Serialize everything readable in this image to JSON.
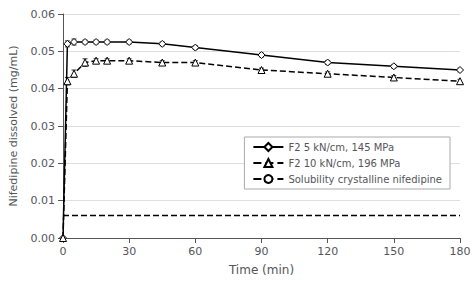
{
  "chart_data": {
    "type": "line",
    "xlabel": "Time (min)",
    "ylabel": "Nifedipine dissolved (mg/mL)",
    "xlim": [
      0,
      180
    ],
    "xticks": [
      0,
      30,
      60,
      90,
      120,
      150,
      180
    ],
    "ylim": [
      0.0,
      0.06
    ],
    "yticks": [
      {
        "value": 0,
        "label": "0.00"
      },
      0.01,
      0.02,
      0.03,
      0.04,
      0.05,
      0.06
    ],
    "grid": true,
    "legend": "lower right",
    "series": [
      {
        "name": "F2 5 kN/cm, 145 MPa",
        "color": "#000000",
        "marker": "diamond",
        "line_style": "solid",
        "x": [
          0,
          2,
          5,
          10,
          15,
          20,
          30,
          45,
          60,
          90,
          120,
          150,
          180
        ],
        "values": [
          0.0,
          0.052,
          0.0525,
          0.0525,
          0.0525,
          0.0525,
          0.0525,
          0.052,
          0.051,
          0.049,
          0.047,
          0.046,
          0.045
        ],
        "errors": [
          0.0,
          0.0008,
          0.0008,
          0.0005,
          0.0005,
          0.0005,
          0.0005,
          0.0005,
          0.0005,
          0.0005,
          0.0005,
          0.0005,
          0.0005
        ]
      },
      {
        "name": "F2 10 kN/cm, 196 MPa",
        "color": "#000000",
        "marker": "triangle",
        "line_style": "dashed",
        "x": [
          0,
          2,
          5,
          10,
          15,
          20,
          30,
          45,
          60,
          90,
          120,
          150,
          180
        ],
        "values": [
          0.0,
          0.042,
          0.044,
          0.047,
          0.0475,
          0.0475,
          0.0475,
          0.047,
          0.047,
          0.045,
          0.044,
          0.043,
          0.042
        ],
        "errors": [
          0.0,
          0.001,
          0.001,
          0.001,
          0.0005,
          0.0005,
          0.0005,
          0.0005,
          0.0005,
          0.0005,
          0.0005,
          0.0005,
          0.0005
        ]
      },
      {
        "name": "Solubility crystalline nifedipine",
        "color": "#000000",
        "line_style": "dashed",
        "x": [
          0,
          180
        ],
        "values": [
          0.006,
          0.006
        ]
      }
    ]
  }
}
